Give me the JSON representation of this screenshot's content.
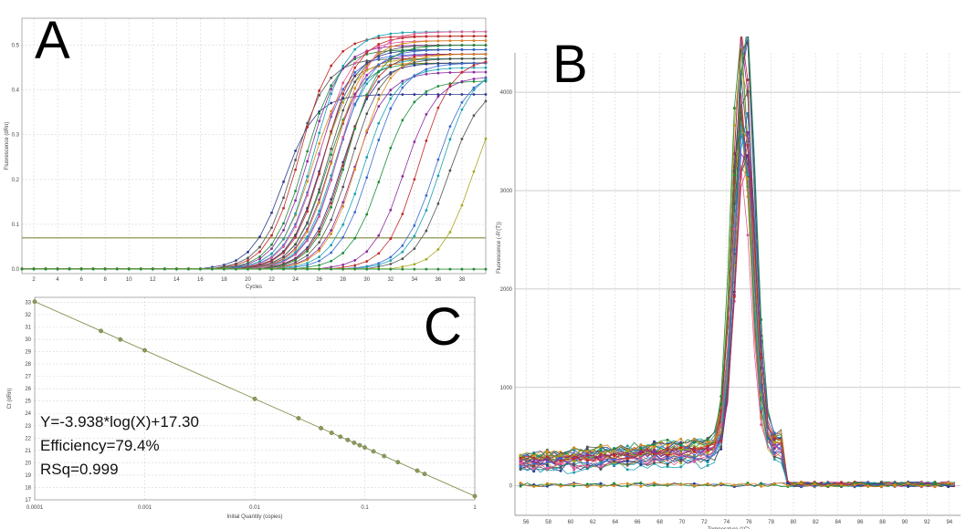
{
  "panels": {
    "a_letter": "A",
    "b_letter": "B",
    "c_letter": "C"
  },
  "stats": {
    "equation": "Y=-3.938*log(X)+17.30",
    "efficiency": "Efficiency=79.4%",
    "rsq": "RSq=0.999"
  },
  "colors": {
    "grid": "#d6d6d6",
    "axis": "#7a7a7a",
    "threshold": "#9ea66f",
    "standard_curve": "#8a9a5b",
    "series_palette": [
      "#c02a2a",
      "#2e3a8c",
      "#1e8c3a",
      "#d88a1b",
      "#8a2aa0",
      "#1aa0b0",
      "#a8a820",
      "#555555",
      "#e05a9a",
      "#3a6ad0"
    ]
  },
  "chart_data": [
    {
      "id": "A",
      "type": "line",
      "xlabel": "Cycles",
      "ylabel": "Fluorescence (dRn)",
      "xlim": [
        1,
        40
      ],
      "ylim": [
        -0.01,
        0.56
      ],
      "x_ticks": [
        "2",
        "4",
        "6",
        "8",
        "10",
        "12",
        "14",
        "16",
        "18",
        "20",
        "22",
        "24",
        "26",
        "28",
        "30",
        "32",
        "34",
        "36",
        "38"
      ],
      "y_ticks": [
        "0.0",
        "0.1",
        "0.2",
        "0.3",
        "0.4",
        "0.5"
      ],
      "threshold": 0.07,
      "grid": true,
      "series": [
        {
          "ct": 19.8,
          "plateau": 0.39,
          "color": "#2e3a8c"
        },
        {
          "ct": 20.7,
          "plateau": 0.47,
          "color": "#555555"
        },
        {
          "ct": 21.2,
          "plateau": 0.52,
          "color": "#c02a2a"
        },
        {
          "ct": 21.6,
          "plateau": 0.49,
          "color": "#1e8c3a"
        },
        {
          "ct": 21.9,
          "plateau": 0.5,
          "color": "#8a2aa0"
        },
        {
          "ct": 22.2,
          "plateau": 0.46,
          "color": "#d88a1b"
        },
        {
          "ct": 22.4,
          "plateau": 0.53,
          "color": "#1aa0b0"
        },
        {
          "ct": 22.6,
          "plateau": 0.48,
          "color": "#3a6ad0"
        },
        {
          "ct": 22.8,
          "plateau": 0.51,
          "color": "#e05a9a"
        },
        {
          "ct": 23.0,
          "plateau": 0.47,
          "color": "#a8a820"
        },
        {
          "ct": 23.1,
          "plateau": 0.49,
          "color": "#2e3a8c"
        },
        {
          "ct": 23.3,
          "plateau": 0.52,
          "color": "#c02a2a"
        },
        {
          "ct": 23.5,
          "plateau": 0.46,
          "color": "#1e8c3a"
        },
        {
          "ct": 23.6,
          "plateau": 0.5,
          "color": "#555555"
        },
        {
          "ct": 23.8,
          "plateau": 0.48,
          "color": "#8a2aa0"
        },
        {
          "ct": 24.0,
          "plateau": 0.51,
          "color": "#d88a1b"
        },
        {
          "ct": 24.1,
          "plateau": 0.47,
          "color": "#1aa0b0"
        },
        {
          "ct": 24.3,
          "plateau": 0.49,
          "color": "#3a6ad0"
        },
        {
          "ct": 24.5,
          "plateau": 0.53,
          "color": "#e05a9a"
        },
        {
          "ct": 24.7,
          "plateau": 0.46,
          "color": "#2e3a8c"
        },
        {
          "ct": 24.9,
          "plateau": 0.48,
          "color": "#c02a2a"
        },
        {
          "ct": 25.1,
          "plateau": 0.5,
          "color": "#1e8c3a"
        },
        {
          "ct": 25.4,
          "plateau": 0.47,
          "color": "#555555"
        },
        {
          "ct": 25.7,
          "plateau": 0.44,
          "color": "#8a2aa0"
        },
        {
          "ct": 26.0,
          "plateau": 0.48,
          "color": "#d88a1b"
        },
        {
          "ct": 26.5,
          "plateau": 0.45,
          "color": "#1aa0b0"
        },
        {
          "ct": 27.1,
          "plateau": 0.46,
          "color": "#3a6ad0"
        },
        {
          "ct": 28.0,
          "plateau": 0.42,
          "color": "#1e8c3a"
        },
        {
          "ct": 29.9,
          "plateau": 0.43,
          "color": "#8a2aa0"
        },
        {
          "ct": 31.2,
          "plateau": 0.47,
          "color": "#c02a2a"
        },
        {
          "ct": 32.5,
          "plateau": 0.44,
          "color": "#3a6ad0"
        },
        {
          "ct": 33.0,
          "plateau": 0.45,
          "color": "#1aa0b0"
        },
        {
          "ct": 33.6,
          "plateau": 0.41,
          "color": "#555555"
        },
        {
          "ct": 35.7,
          "plateau": 0.42,
          "color": "#a8a820"
        },
        {
          "ct": null,
          "plateau": 0.0,
          "color": "#a8a820"
        },
        {
          "ct": null,
          "plateau": 0.0,
          "color": "#1e8c3a"
        }
      ]
    },
    {
      "id": "B",
      "type": "line",
      "xlabel": "Temperature (°C)",
      "ylabel": "Fluorescence (-R'(T))",
      "xlim": [
        55,
        95
      ],
      "ylim": [
        -300,
        4400
      ],
      "x_ticks": [
        "56",
        "58",
        "60",
        "62",
        "64",
        "66",
        "68",
        "70",
        "72",
        "74",
        "76",
        "78",
        "80",
        "82",
        "84",
        "86",
        "88",
        "90",
        "92",
        "94"
      ],
      "y_ticks": [
        "0",
        "1000",
        "2000",
        "3000",
        "4000"
      ],
      "grid": true,
      "peak_temperature": 75.5,
      "peak_range": [
        2900,
        4350
      ],
      "shoulder_level": [
        200,
        450
      ],
      "num_traces": 34
    },
    {
      "id": "C",
      "type": "scatter",
      "xlabel": "Initial Quantity (copies)",
      "ylabel": "Ct (dRn)",
      "x_scale": "log",
      "xlim": [
        0.0001,
        1
      ],
      "ylim": [
        17,
        33.4
      ],
      "x_ticks": [
        "0.0001",
        "0.001",
        "0.01",
        "0.1",
        "1"
      ],
      "y_ticks": [
        "17",
        "18",
        "19",
        "20",
        "21",
        "22",
        "23",
        "24",
        "25",
        "26",
        "27",
        "28",
        "29",
        "30",
        "31",
        "32",
        "33"
      ],
      "grid": true,
      "slope": -3.938,
      "intercept": 17.3,
      "points_x": [
        0.0001,
        0.0004,
        0.0006,
        0.001,
        0.01,
        0.025,
        0.04,
        0.05,
        0.06,
        0.07,
        0.08,
        0.09,
        0.1,
        0.12,
        0.15,
        0.2,
        0.3,
        0.35,
        1
      ]
    }
  ]
}
